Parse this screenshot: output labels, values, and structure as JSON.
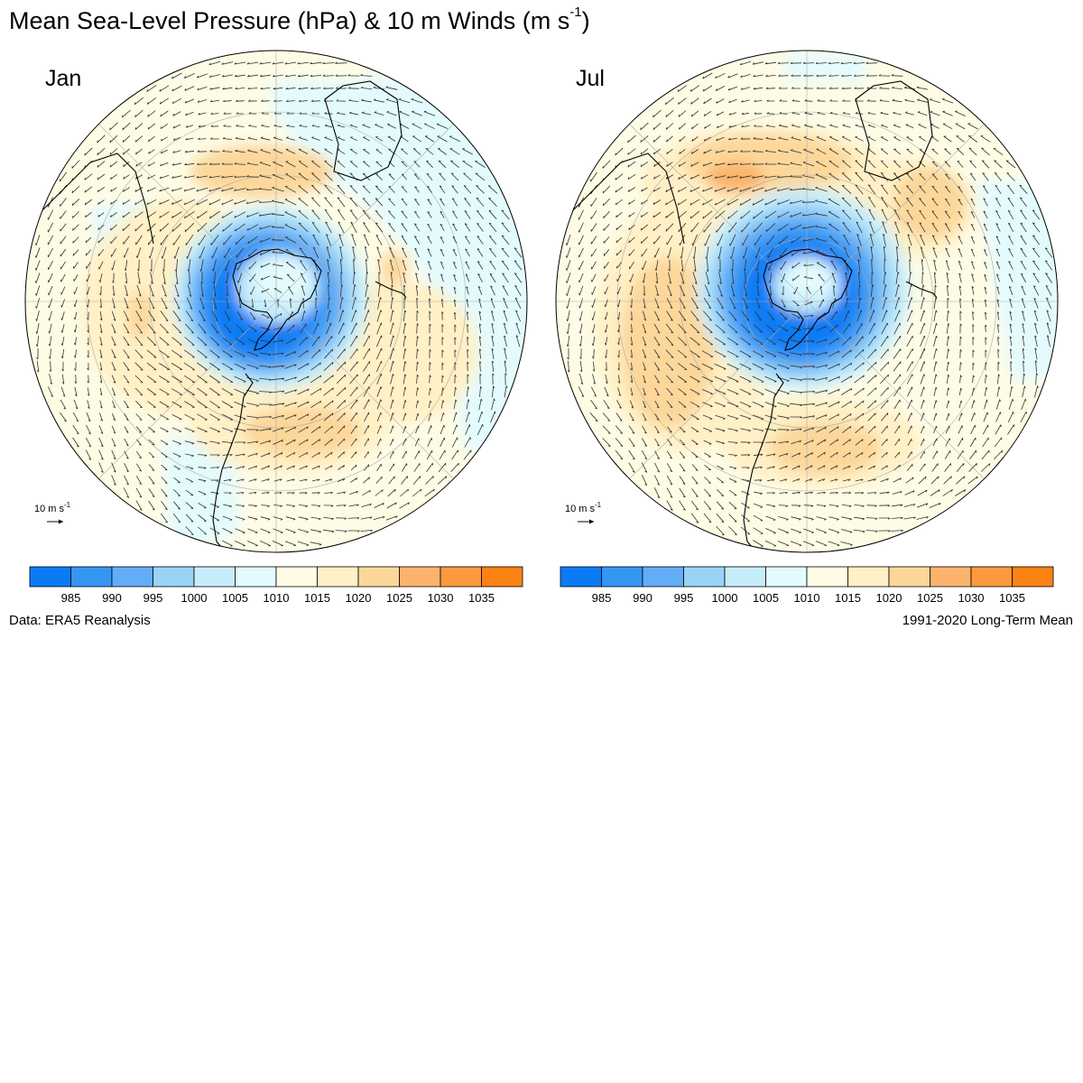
{
  "title": {
    "main": "Mean Sea-Level Pressure (hPa) & 10 m Winds (m s",
    "sup": "-1",
    "close": ")"
  },
  "panels": [
    {
      "id": "jan",
      "label": "Jan"
    },
    {
      "id": "jul",
      "label": "Jul"
    }
  ],
  "reference_vector": {
    "label": "10 m s",
    "sup": "-1"
  },
  "colorbar": {
    "colors": [
      "#0a7bf5",
      "#3596f4",
      "#63adf7",
      "#99d3f8",
      "#c6eefa",
      "#e4fbfd",
      "#fefce5",
      "#fff0c5",
      "#fdd79a",
      "#fcb36c",
      "#fc9a3f",
      "#fb8214"
    ],
    "tick_labels": [
      "985",
      "990",
      "995",
      "1000",
      "1005",
      "1010",
      "1015",
      "1020",
      "1025",
      "1030",
      "1035"
    ]
  },
  "footnotes": {
    "left": "Data: ERA5 Reanalysis",
    "right": "1991-2020 Long-Term Mean"
  },
  "colors": {
    "land_outline": "#000000",
    "wind_arrow": "#333333",
    "graticule": "#aaaaaa"
  }
}
